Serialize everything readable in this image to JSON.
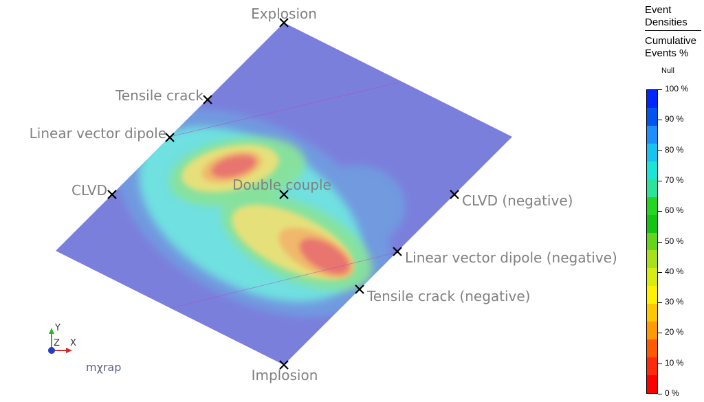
{
  "diagram": {
    "mechanisms": [
      {
        "id": "explosion",
        "label": "Explosion"
      },
      {
        "id": "tensile-crack",
        "label": "Tensile crack"
      },
      {
        "id": "linear-vector-dipole",
        "label": "Linear vector dipole"
      },
      {
        "id": "clvd",
        "label": "CLVD"
      },
      {
        "id": "double-couple",
        "label": "Double couple"
      },
      {
        "id": "clvd-negative",
        "label": "CLVD (negative)"
      },
      {
        "id": "linear-vector-dipole-negative",
        "label": "Linear vector dipole (negative)"
      },
      {
        "id": "tensile-crack-negative",
        "label": "Tensile crack (negative)"
      },
      {
        "id": "implosion",
        "label": "Implosion"
      }
    ],
    "plane_color": "#7b7fdc",
    "density_colors": {
      "low": "#6f9fe0",
      "cyan": "#6fe0e0",
      "green": "#88e29a",
      "yellow": "#e6e07a",
      "orange": "#f0b86c",
      "red": "#e8746e"
    }
  },
  "legend": {
    "title_line1": "Event",
    "title_line2": "Densities",
    "title_line3": "Cumulative",
    "title_line4": "Events %",
    "null_label": "Null",
    "ticks": [
      "100 %",
      "90 %",
      "80 %",
      "70 %",
      "60 %",
      "50 %",
      "40 %",
      "30 %",
      "20 %",
      "10 %",
      "0 %"
    ],
    "colorbar_colors": [
      "#0026ff",
      "#0055ee",
      "#1e8fff",
      "#19c3f0",
      "#19e6d6",
      "#2be39a",
      "#22d622",
      "#13c413",
      "#66d41b",
      "#a6e11a",
      "#d8ec12",
      "#fff200",
      "#ffc800",
      "#ff9a00",
      "#ff5a00",
      "#ff2a0a",
      "#ff0000"
    ]
  },
  "axes": {
    "x": "X",
    "y": "Y",
    "z": "Z"
  },
  "logo": "mχrap"
}
